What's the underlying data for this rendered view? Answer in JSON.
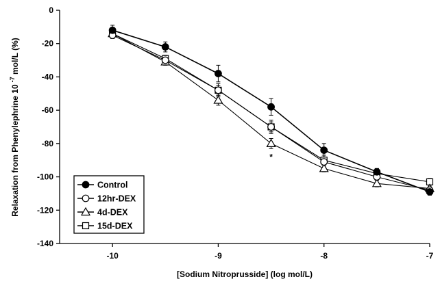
{
  "chart_data": {
    "type": "line",
    "xlabel": "[Sodium Nitroprusside] (log mol/L)",
    "ylabel": "Relaxation from Phenylephrine 10",
    "ylabel_superscript": "-7",
    "ylabel_suffix": " mol/L (%)",
    "xlim": [
      -10.5,
      -7
    ],
    "ylim": [
      -140,
      0
    ],
    "xticks": [
      -10,
      -9,
      -8,
      -7
    ],
    "yticks": [
      0,
      -20,
      -40,
      -60,
      -80,
      -100,
      -120,
      -140
    ],
    "grid": false,
    "legend_position": "bottom-left",
    "x": [
      -10,
      -9.5,
      -9,
      -8.5,
      -8,
      -7.5,
      -7
    ],
    "series": [
      {
        "name": "Control",
        "marker": "circle-filled",
        "values": [
          -12,
          -22,
          -38,
          -58,
          -84,
          -97,
          -109
        ],
        "errors": [
          3,
          3,
          5,
          5,
          4,
          2,
          2
        ]
      },
      {
        "name": "12hr-DEX",
        "marker": "circle-open",
        "values": [
          -15,
          -30,
          -48,
          -70,
          -91,
          -100,
          -108
        ],
        "errors": [
          2,
          2,
          3,
          3,
          2,
          2,
          2
        ]
      },
      {
        "name": "4d-DEX",
        "marker": "triangle-open",
        "values": [
          -14,
          -31,
          -54,
          -80,
          -95,
          -104,
          -107
        ],
        "errors": [
          2,
          2,
          3,
          3,
          2,
          2,
          2
        ]
      },
      {
        "name": "15d-DEX",
        "marker": "square-open",
        "values": [
          -14,
          -29,
          -48,
          -70,
          -90,
          -98,
          -103
        ],
        "errors": [
          2,
          2,
          4,
          4,
          3,
          3,
          2
        ]
      }
    ],
    "annotations": [
      {
        "text": "*",
        "x": -8.5,
        "y": -88
      }
    ]
  }
}
